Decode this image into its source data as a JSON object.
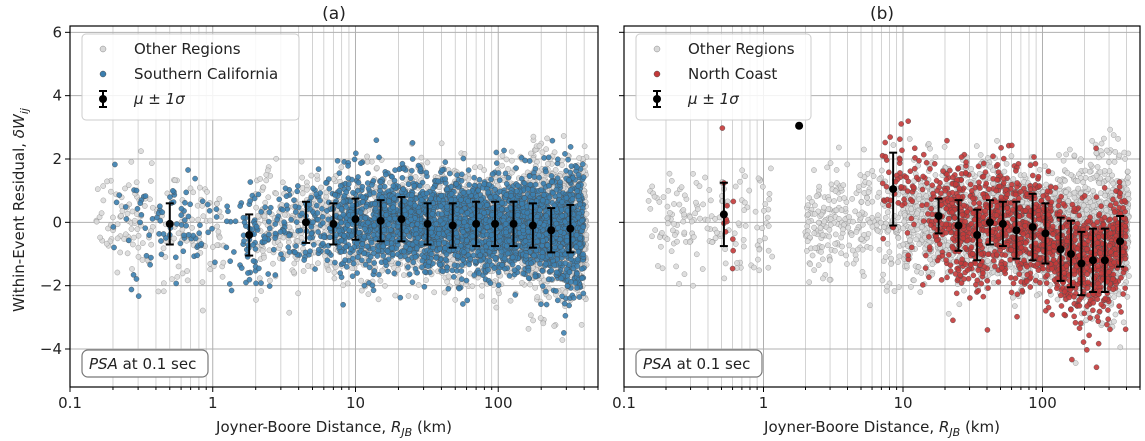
{
  "chart_data": [
    {
      "type": "scatter",
      "title": "(a)",
      "xlabel_main": "Joyner-Boore Distance, ",
      "xlabel_symbol": "R",
      "xlabel_sub": "JB",
      "xlabel_unit": " (km)",
      "ylabel_main": "Within-Event Residual, ",
      "ylabel_symbol": "δW",
      "ylabel_sub": "ij",
      "xscale": "log",
      "xlim": [
        0.1,
        500
      ],
      "ylim": [
        -5.2,
        6.2
      ],
      "x_ticks": [
        0.1,
        1,
        10,
        100
      ],
      "x_tick_labels": [
        "0.1",
        "1",
        "10",
        "100"
      ],
      "y_ticks": [
        -4,
        -2,
        0,
        2,
        4,
        6
      ],
      "y_tick_labels": [
        "−4",
        "−2",
        "0",
        "2",
        "4",
        "6"
      ],
      "grid": true,
      "legend_position": "top-left",
      "annotation_italic": "PSA",
      "annotation_rest": " at 0.1 sec",
      "legend": {
        "other": "Other Regions",
        "region": "Southern California",
        "stat_prefix": "μ ± 1",
        "stat_sigma": "σ"
      },
      "colors": {
        "other": "#d8d8d8",
        "region": "#3b7fb0",
        "stat": "#000000"
      },
      "bins": [
        {
          "x": 0.5,
          "mean": -0.05,
          "sigma": 0.65
        },
        {
          "x": 1.8,
          "mean": -0.4,
          "sigma": 0.65
        },
        {
          "x": 4.5,
          "mean": 0.0,
          "sigma": 0.65
        },
        {
          "x": 7.0,
          "mean": -0.05,
          "sigma": 0.65
        },
        {
          "x": 10.0,
          "mean": 0.1,
          "sigma": 0.65
        },
        {
          "x": 15.0,
          "mean": 0.05,
          "sigma": 0.65
        },
        {
          "x": 21.0,
          "mean": 0.1,
          "sigma": 0.7
        },
        {
          "x": 32.0,
          "mean": -0.05,
          "sigma": 0.65
        },
        {
          "x": 48.0,
          "mean": -0.1,
          "sigma": 0.7
        },
        {
          "x": 70.0,
          "mean": -0.05,
          "sigma": 0.7
        },
        {
          "x": 95.0,
          "mean": -0.05,
          "sigma": 0.7
        },
        {
          "x": 128.0,
          "mean": -0.05,
          "sigma": 0.7
        },
        {
          "x": 175.0,
          "mean": -0.1,
          "sigma": 0.7
        },
        {
          "x": 235.0,
          "mean": -0.25,
          "sigma": 0.7
        },
        {
          "x": 320.0,
          "mean": -0.2,
          "sigma": 0.75
        }
      ],
      "scatter_spread": {
        "other": 1.0,
        "region": 0.9
      }
    },
    {
      "type": "scatter",
      "title": "(b)",
      "xlabel_main": "Joyner-Boore Distance, ",
      "xlabel_symbol": "R",
      "xlabel_sub": "JB",
      "xlabel_unit": " (km)",
      "xscale": "log",
      "xlim": [
        0.1,
        500
      ],
      "ylim": [
        -5.2,
        6.2
      ],
      "x_ticks": [
        0.1,
        1,
        10,
        100
      ],
      "x_tick_labels": [
        "0.1",
        "1",
        "10",
        "100"
      ],
      "y_ticks": [
        -4,
        -2,
        0,
        2,
        4,
        6
      ],
      "grid": true,
      "legend_position": "top-left",
      "annotation_italic": "PSA",
      "annotation_rest": " at 0.1 sec",
      "legend": {
        "other": "Other Regions",
        "region": "North Coast",
        "stat_prefix": "μ ± 1",
        "stat_sigma": "σ"
      },
      "colors": {
        "other": "#d8d8d8",
        "region": "#c43a3a",
        "stat": "#000000"
      },
      "bins": [
        {
          "x": 0.52,
          "mean": 0.25,
          "sigma": 1.0
        },
        {
          "x": 1.8,
          "mean": 3.05,
          "sigma": 0.0
        },
        {
          "x": 8.5,
          "mean": 1.05,
          "sigma": 1.15
        },
        {
          "x": 18.0,
          "mean": 0.2,
          "sigma": 0.55
        },
        {
          "x": 25.0,
          "mean": -0.1,
          "sigma": 0.8
        },
        {
          "x": 34.0,
          "mean": -0.4,
          "sigma": 0.8
        },
        {
          "x": 42.0,
          "mean": 0.0,
          "sigma": 0.7
        },
        {
          "x": 52.0,
          "mean": -0.05,
          "sigma": 0.7
        },
        {
          "x": 65.0,
          "mean": -0.25,
          "sigma": 0.9
        },
        {
          "x": 85.0,
          "mean": -0.15,
          "sigma": 1.05
        },
        {
          "x": 105.0,
          "mean": -0.35,
          "sigma": 0.95
        },
        {
          "x": 135.0,
          "mean": -0.85,
          "sigma": 1.0
        },
        {
          "x": 160.0,
          "mean": -1.0,
          "sigma": 1.05
        },
        {
          "x": 190.0,
          "mean": -1.3,
          "sigma": 1.0
        },
        {
          "x": 230.0,
          "mean": -1.2,
          "sigma": 1.0
        },
        {
          "x": 280.0,
          "mean": -1.2,
          "sigma": 1.0
        },
        {
          "x": 360.0,
          "mean": -0.6,
          "sigma": 0.8
        }
      ],
      "scatter_spread": {
        "other": 1.0,
        "region": 1.0
      }
    }
  ]
}
